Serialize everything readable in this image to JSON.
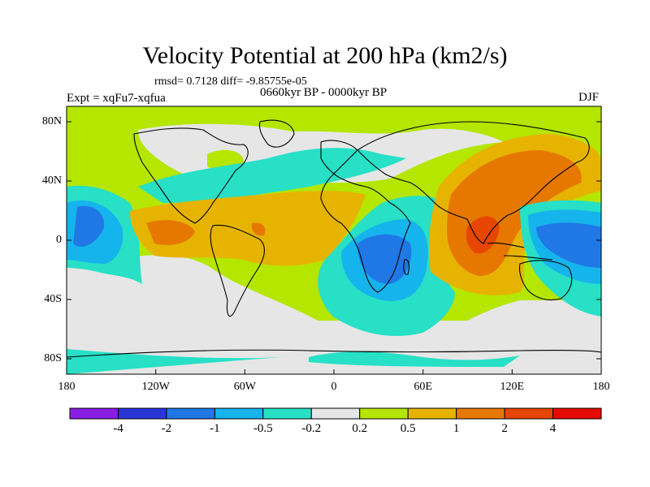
{
  "title": "Velocity Potential at 200 hPa (km2/s)",
  "stats_line": "rmsd= 0.7128 diff= -9.85755e-05",
  "period": "0660kyr BP - 0000kyr BP",
  "experiment": "Expt = xqFu7-xqfua",
  "season": "DJF",
  "lat_ticks": [
    "80N",
    "40N",
    "0",
    "40S",
    "80S"
  ],
  "lon_ticks": [
    "180",
    "120W",
    "60W",
    "0",
    "60E",
    "120E",
    "180"
  ],
  "colorbar": {
    "colors": [
      "#8a1ee6",
      "#2a35d8",
      "#1f78e6",
      "#16b4ec",
      "#27e0c6",
      "#e6e6e6",
      "#b4e600",
      "#e6b400",
      "#e67800",
      "#e64600",
      "#e60a00"
    ],
    "labels": [
      "-4",
      "-2",
      "-1",
      "-0.5",
      "-0.2",
      "0.2",
      "0.5",
      "1",
      "2",
      "4"
    ]
  }
}
